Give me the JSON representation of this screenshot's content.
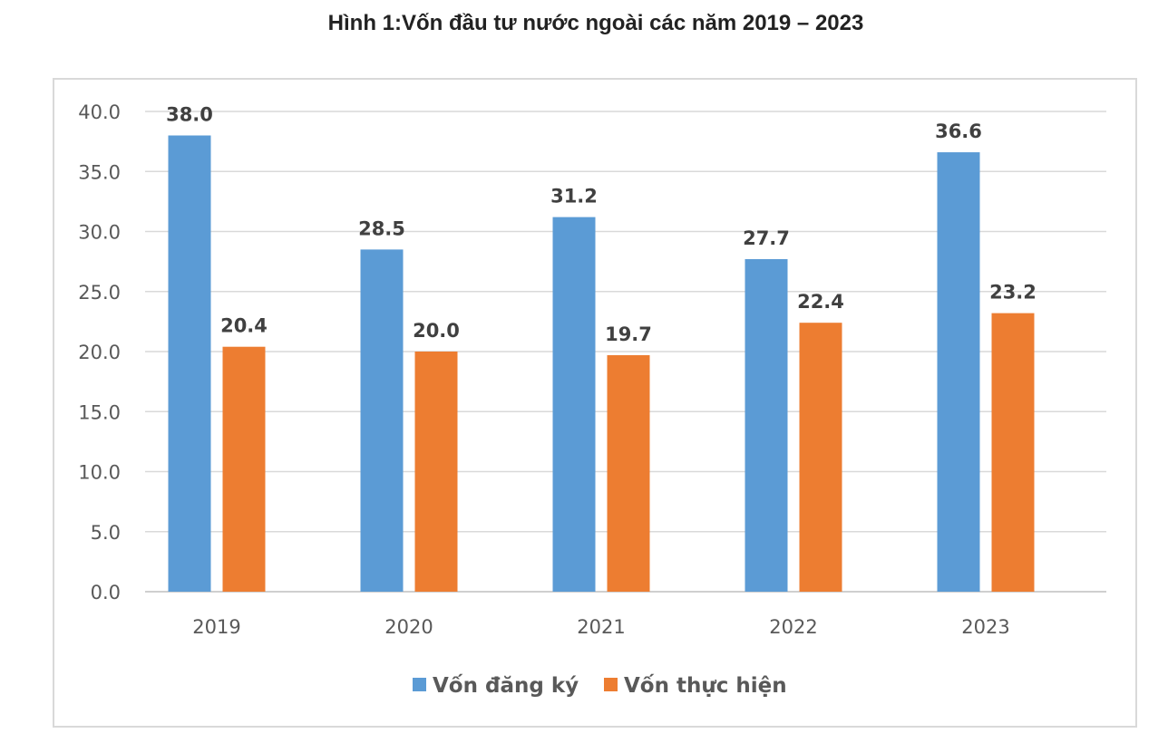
{
  "title": "Hình 1:Vốn đầu tư nước ngoài các năm 2019 – 2023",
  "chart_data": {
    "type": "bar",
    "title": "Hình 1:Vốn đầu tư nước ngoài các năm 2019 – 2023",
    "categories": [
      "2019",
      "2020",
      "2021",
      "2022",
      "2023"
    ],
    "series": [
      {
        "name": "Vốn đăng ký",
        "color": "#5b9bd5",
        "values": [
          38.0,
          28.5,
          31.2,
          27.7,
          36.6
        ]
      },
      {
        "name": "Vốn thực hiện",
        "color": "#ed7d31",
        "values": [
          20.4,
          20.0,
          19.7,
          22.4,
          23.2
        ]
      }
    ],
    "ylim": [
      0,
      40
    ],
    "yticks": [
      "0.0",
      "5.0",
      "10.0",
      "15.0",
      "20.0",
      "25.0",
      "30.0",
      "35.0",
      "40.0"
    ],
    "grid": true,
    "legend": "bottom",
    "data_labels": true
  }
}
